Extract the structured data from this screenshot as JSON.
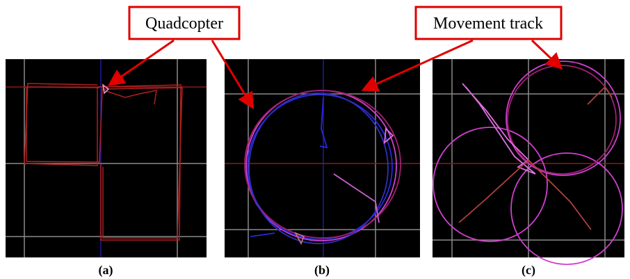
{
  "callouts": {
    "quadcopter": "Quadcopter",
    "movement_track": "Movement track"
  },
  "panels": [
    {
      "label": "(a)"
    },
    {
      "label": "(b)"
    },
    {
      "label": "(c)"
    }
  ]
}
